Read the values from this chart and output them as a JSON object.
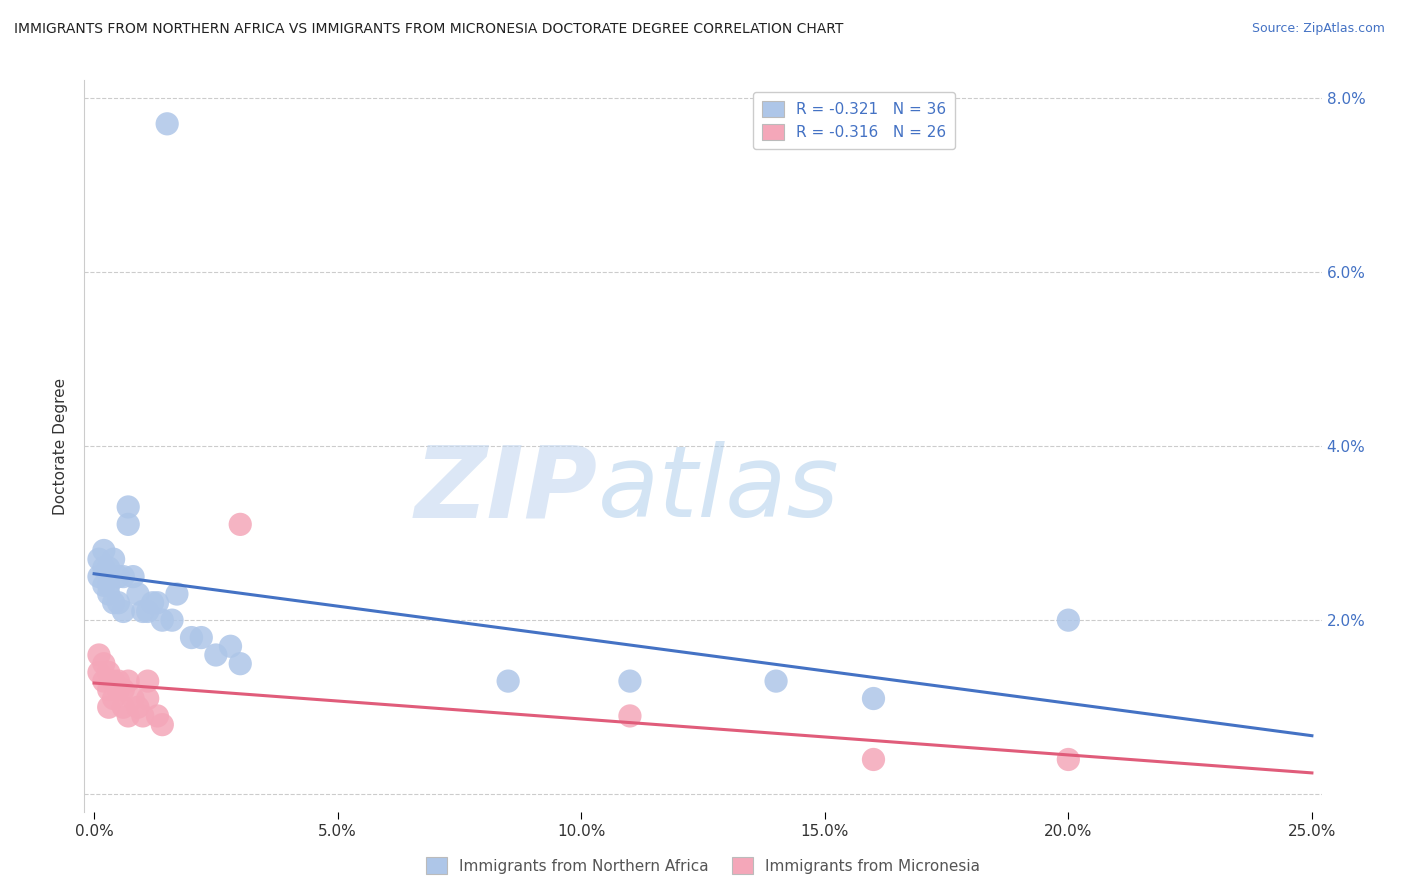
{
  "title": "IMMIGRANTS FROM NORTHERN AFRICA VS IMMIGRANTS FROM MICRONESIA DOCTORATE DEGREE CORRELATION CHART",
  "source": "Source: ZipAtlas.com",
  "ylabel": "Doctorate Degree",
  "watermark_zip": "ZIP",
  "watermark_atlas": "atlas",
  "xlim": [
    -0.002,
    0.252
  ],
  "ylim": [
    -0.002,
    0.082
  ],
  "xticks": [
    0.0,
    0.05,
    0.1,
    0.15,
    0.2,
    0.25
  ],
  "yticks_right": [
    0.0,
    0.02,
    0.04,
    0.06,
    0.08
  ],
  "ytick_labels_right": [
    "",
    "2.0%",
    "4.0%",
    "6.0%",
    "8.0%"
  ],
  "xtick_labels": [
    "0.0%",
    "5.0%",
    "10.0%",
    "15.0%",
    "20.0%",
    "25.0%"
  ],
  "blue_series_label": "Immigrants from Northern Africa",
  "pink_series_label": "Immigrants from Micronesia",
  "blue_R": -0.321,
  "blue_N": 36,
  "pink_R": -0.316,
  "pink_N": 26,
  "blue_color": "#aec6e8",
  "pink_color": "#f4a7b9",
  "blue_line_color": "#4472c4",
  "pink_line_color": "#e05c7a",
  "background_color": "#ffffff",
  "grid_color": "#cccccc",
  "blue_x": [
    0.001,
    0.001,
    0.002,
    0.002,
    0.002,
    0.003,
    0.003,
    0.003,
    0.004,
    0.004,
    0.005,
    0.005,
    0.006,
    0.006,
    0.007,
    0.007,
    0.008,
    0.009,
    0.01,
    0.011,
    0.012,
    0.013,
    0.014,
    0.016,
    0.017,
    0.02,
    0.022,
    0.025,
    0.028,
    0.03,
    0.085,
    0.11,
    0.14,
    0.16,
    0.2,
    0.015
  ],
  "blue_y": [
    0.027,
    0.025,
    0.028,
    0.026,
    0.024,
    0.026,
    0.024,
    0.023,
    0.027,
    0.022,
    0.025,
    0.022,
    0.025,
    0.021,
    0.033,
    0.031,
    0.025,
    0.023,
    0.021,
    0.021,
    0.022,
    0.022,
    0.02,
    0.02,
    0.023,
    0.018,
    0.018,
    0.016,
    0.017,
    0.015,
    0.013,
    0.013,
    0.013,
    0.011,
    0.02,
    0.077
  ],
  "pink_x": [
    0.001,
    0.001,
    0.002,
    0.002,
    0.003,
    0.003,
    0.003,
    0.004,
    0.004,
    0.005,
    0.005,
    0.006,
    0.006,
    0.007,
    0.007,
    0.008,
    0.009,
    0.01,
    0.011,
    0.011,
    0.013,
    0.014,
    0.03,
    0.11,
    0.16,
    0.2
  ],
  "pink_y": [
    0.016,
    0.014,
    0.015,
    0.013,
    0.014,
    0.012,
    0.01,
    0.013,
    0.011,
    0.013,
    0.012,
    0.012,
    0.01,
    0.013,
    0.009,
    0.011,
    0.01,
    0.009,
    0.013,
    0.011,
    0.009,
    0.008,
    0.031,
    0.009,
    0.004,
    0.004
  ],
  "blue_line_x0": 0.0,
  "blue_line_y0": 0.027,
  "blue_line_x1": 0.25,
  "blue_line_y1": 0.0,
  "pink_line_x0": 0.0,
  "pink_line_y0": 0.017,
  "pink_line_x1": 0.25,
  "pink_line_y1": 0.002
}
